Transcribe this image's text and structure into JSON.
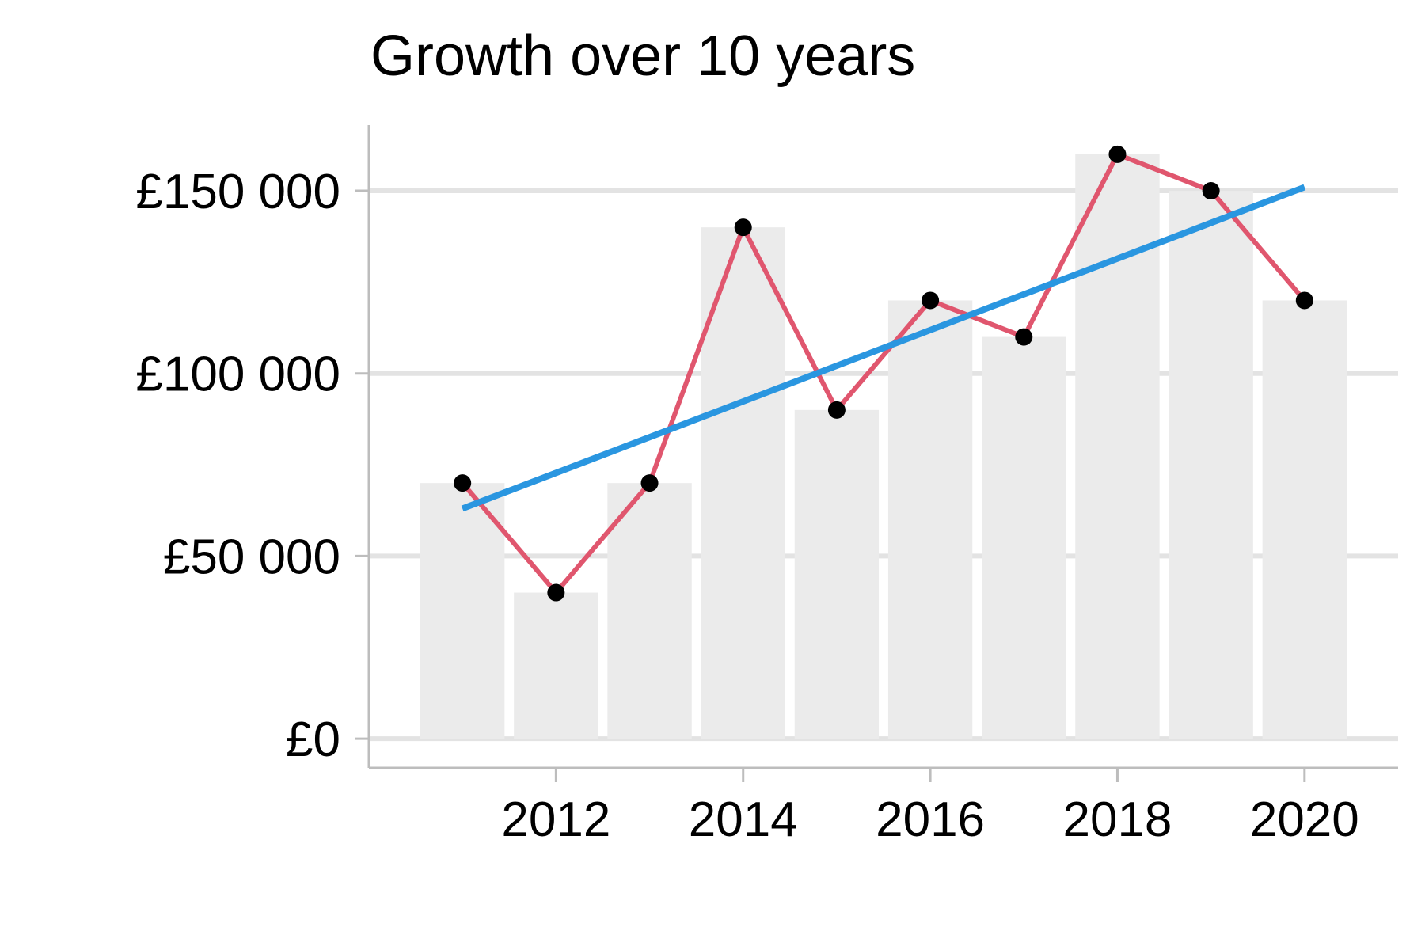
{
  "chart_data": {
    "type": "bar",
    "title": "Growth over 10 years",
    "xlabel": "",
    "ylabel": "",
    "x": [
      2011,
      2012,
      2013,
      2014,
      2015,
      2016,
      2017,
      2018,
      2019,
      2020
    ],
    "values": [
      70000,
      40000,
      70000,
      140000,
      90000,
      120000,
      110000,
      160000,
      150000,
      120000
    ],
    "trend": {
      "start": [
        2011,
        63000
      ],
      "end": [
        2020,
        151000
      ]
    },
    "xlim": [
      2010.0,
      2021.0
    ],
    "ylim": [
      -8000,
      168000
    ],
    "x_ticks": [
      2012,
      2014,
      2016,
      2018,
      2020
    ],
    "x_tick_labels": [
      "2012",
      "2014",
      "2016",
      "2018",
      "2020"
    ],
    "y_ticks": [
      0,
      50000,
      100000,
      150000
    ],
    "y_tick_labels": [
      "£0",
      "£50 000",
      "£100 000",
      "£150 000"
    ],
    "grid": true,
    "legend": "none",
    "colors": {
      "bars": "#ebebeb",
      "line": "#e0566e",
      "points": "#000000",
      "trend": "#2a96e0",
      "grid": "#e3e3e3",
      "axis": "#bdbdbd"
    }
  }
}
